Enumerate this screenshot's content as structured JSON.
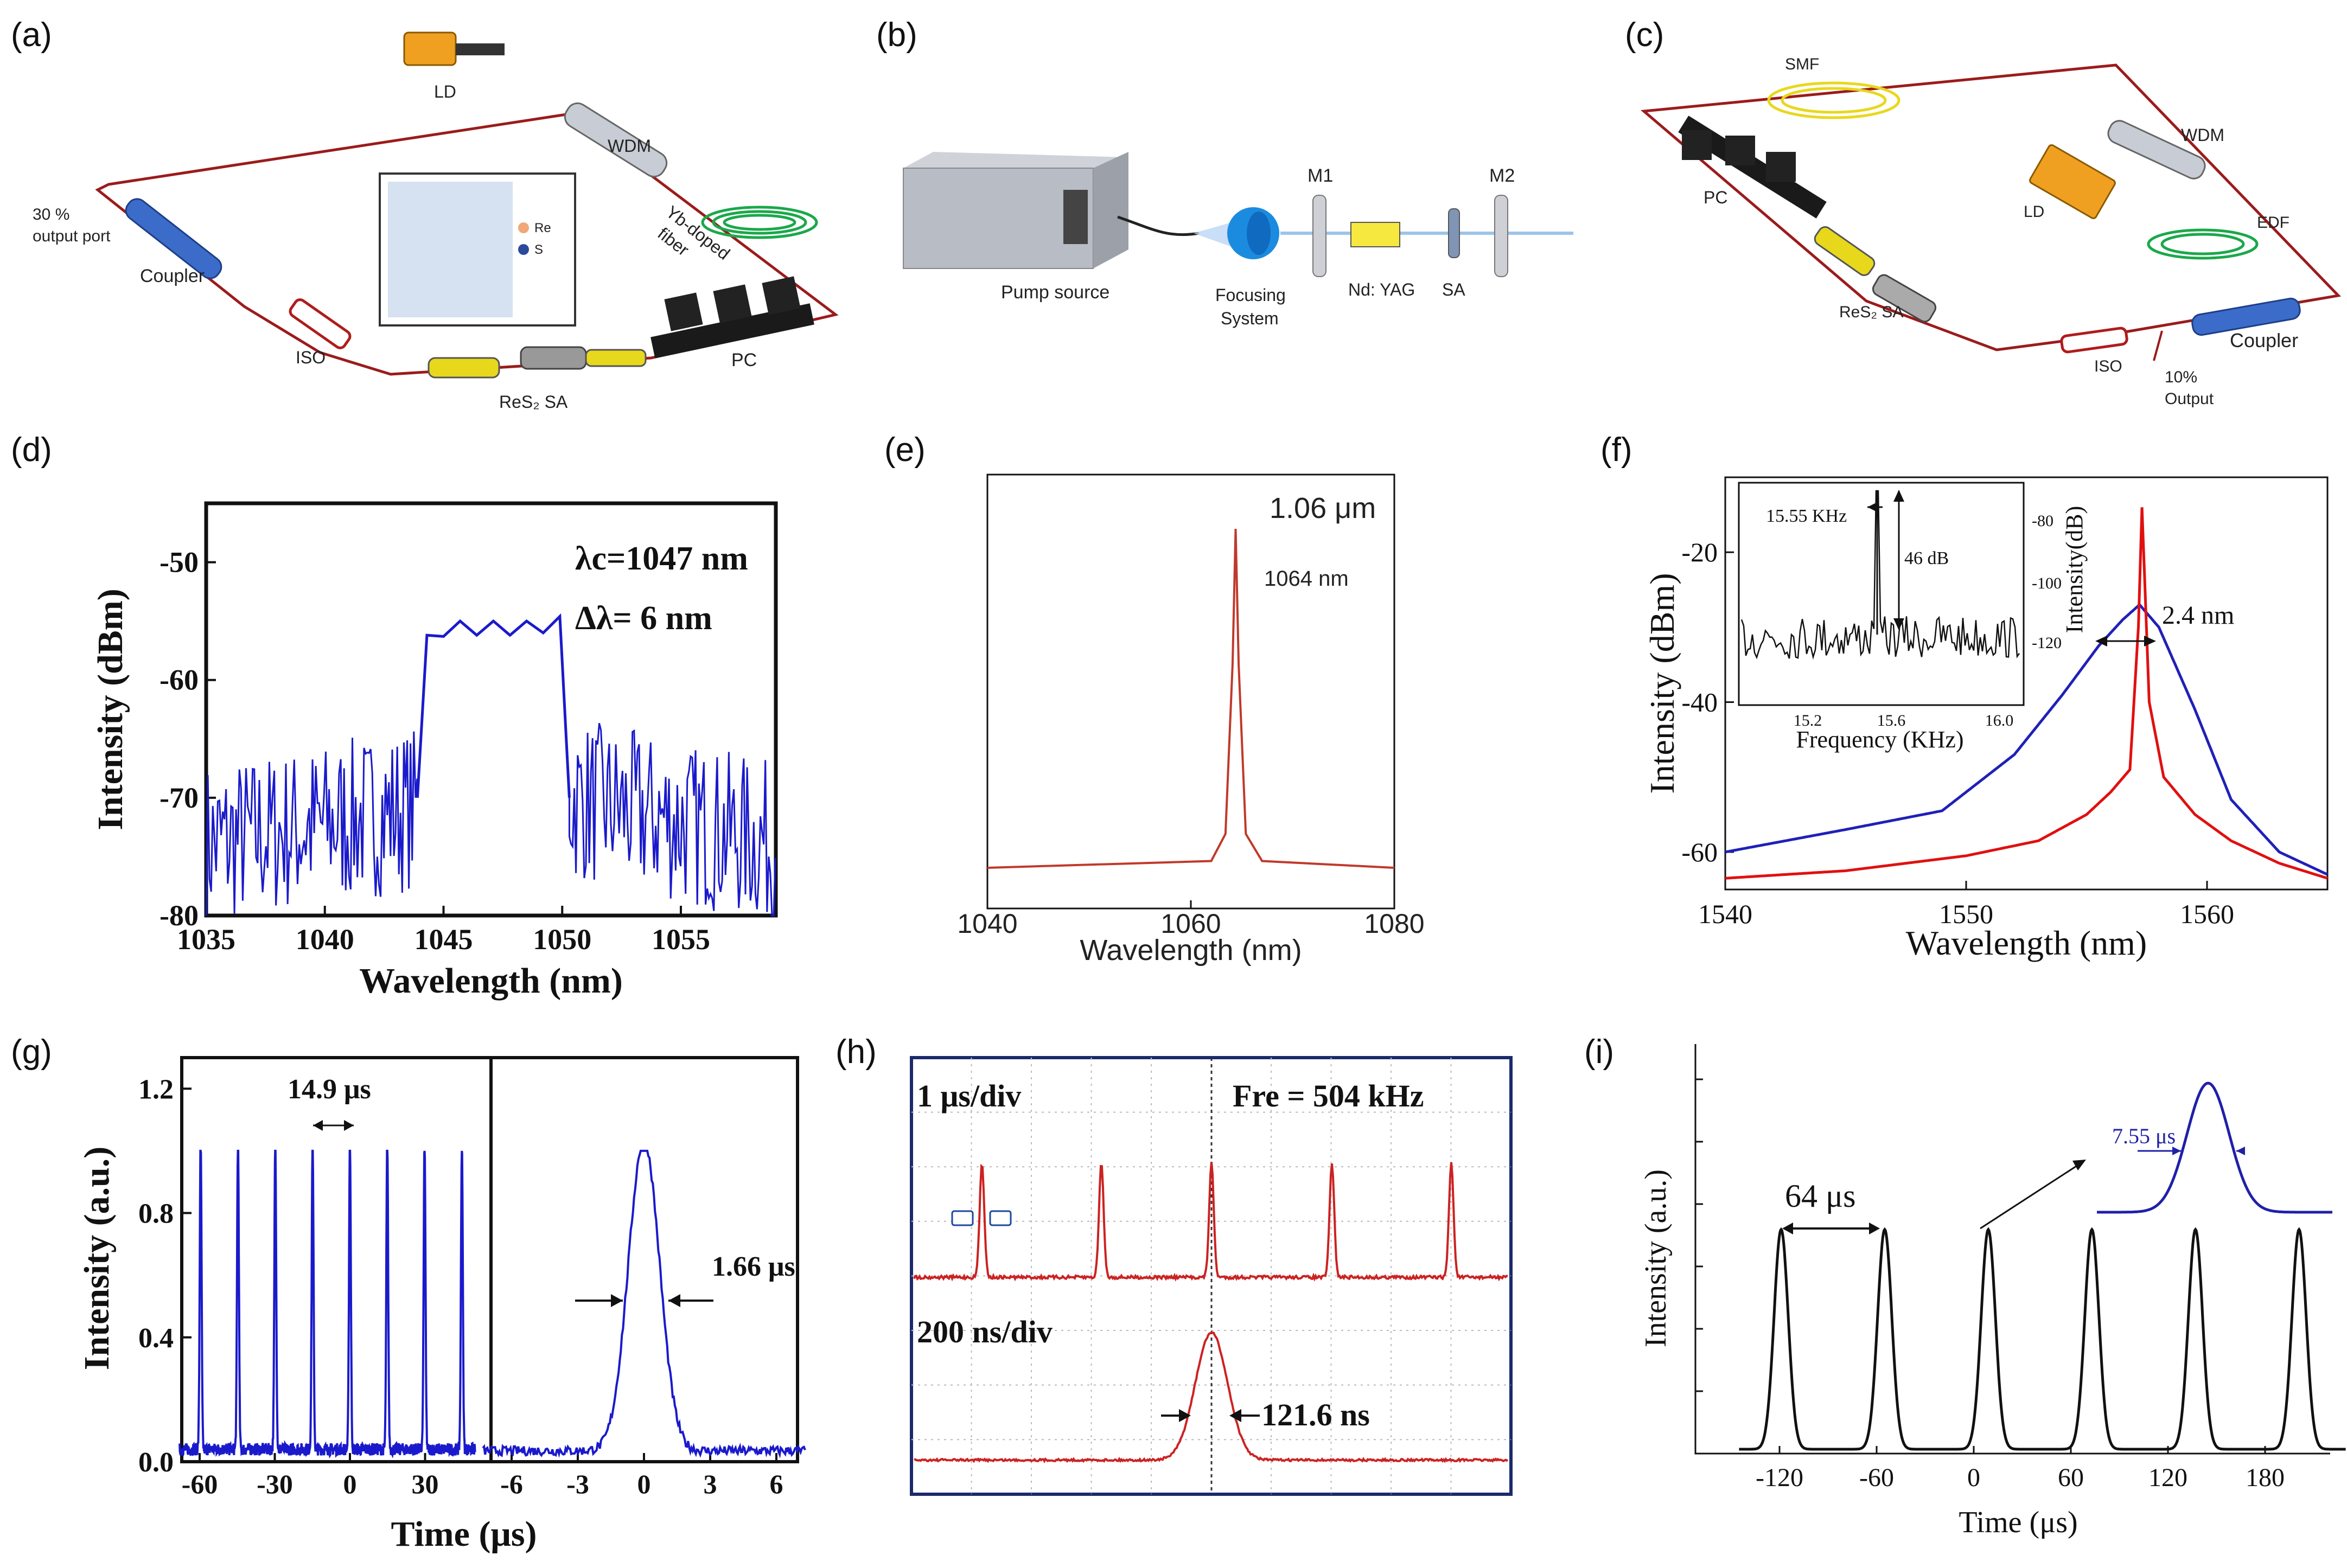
{
  "panels": [
    "(a)",
    "(b)",
    "(c)",
    "(d)",
    "(e)",
    "(f)",
    "(g)",
    "(h)",
    "(i)"
  ],
  "a": {
    "ld": "LD",
    "wdm": "WDM",
    "output": [
      "30 %",
      "output port"
    ],
    "coupler": "Coupler",
    "iso": "ISO",
    "sa": "ReS₂ SA",
    "pc": "PC",
    "fiber": [
      "Yb-doped",
      "fiber"
    ],
    "legend_re": "Re",
    "legend_s": "S"
  },
  "b": {
    "pump": "Pump source",
    "focusing": [
      "Focusing",
      "System"
    ],
    "m1": "M1",
    "m2": "M2",
    "ndyag": "Nd: YAG",
    "sa": "SA"
  },
  "c": {
    "smf": "SMF",
    "wdm": "WDM",
    "pc": "PC",
    "ld": "LD",
    "edf": "EDF",
    "sa": "ReS₂ SA",
    "iso": "ISO",
    "output": [
      "10%",
      "Output"
    ],
    "coupler": "Coupler"
  },
  "chart_data": [
    {
      "panel": "d",
      "type": "line",
      "xlabel": "Wavelength (nm)",
      "ylabel": "Intensity (dBm)",
      "xlim": [
        1035,
        1059
      ],
      "ylim": [
        -80,
        -45
      ],
      "xticks": [
        "1035",
        "1040",
        "1045",
        "1050",
        "1055"
      ],
      "yticks": [
        "-80",
        "-70",
        "-60",
        "-50"
      ],
      "annotations": [
        "λc=1047 nm",
        "Δλ= 6 nm"
      ],
      "series": [
        {
          "name": "spectrum",
          "color": "#1a1acc",
          "x": [
            1043.9,
            1044.3,
            1045,
            1045.7,
            1046.4,
            1047.1,
            1047.8,
            1048.5,
            1049.2,
            1049.9,
            1050.3
          ],
          "y": [
            -70,
            -56.2,
            -56.3,
            -55,
            -56.2,
            -55,
            -56.2,
            -55,
            -56,
            -54.6,
            -70
          ]
        }
      ]
    },
    {
      "panel": "e",
      "type": "line",
      "xlabel": "Wavelength (nm)",
      "ylabel": "",
      "xlim": [
        1040,
        1080
      ],
      "xticks": [
        "1040",
        "1060",
        "1080"
      ],
      "annotations": [
        "1.06 μm",
        "1064 nm"
      ],
      "series": [
        {
          "name": "spectrum",
          "color": "#c0392b",
          "x": [
            1040,
            1062,
            1063.4,
            1064.1,
            1064.4,
            1064.7,
            1065.4,
            1067,
            1080
          ],
          "y": [
            0,
            0.02,
            0.1,
            0.6,
            1.0,
            0.6,
            0.1,
            0.02,
            0
          ]
        }
      ]
    },
    {
      "panel": "f",
      "type": "line",
      "xlabel": "Wavelength (nm)",
      "ylabel": "Intensity (dBm)",
      "xlim": [
        1540,
        1565
      ],
      "ylim": [
        -65,
        -10
      ],
      "xticks": [
        "1540",
        "1550",
        "1560"
      ],
      "yticks": [
        "-60",
        "-40",
        "-20"
      ],
      "annotations": [
        "2.4 nm"
      ],
      "series": [
        {
          "name": "blue",
          "color": "#2020b8",
          "x": [
            1540,
            1545,
            1549,
            1552,
            1554,
            1555.5,
            1556.5,
            1557.2,
            1558,
            1559.5,
            1561,
            1563,
            1565
          ],
          "y": [
            -60,
            -57,
            -54.5,
            -47,
            -39,
            -32.5,
            -29,
            -27,
            -30,
            -41,
            -53,
            -60,
            -63
          ]
        },
        {
          "name": "red",
          "color": "#e01010",
          "x": [
            1540,
            1545,
            1550,
            1553,
            1555,
            1556,
            1556.8,
            1557.15,
            1557.3,
            1557.6,
            1558.2,
            1559.5,
            1561,
            1563,
            1565
          ],
          "y": [
            -63.5,
            -62.5,
            -60.5,
            -58.5,
            -55,
            -52,
            -49,
            -30,
            -14,
            -40,
            -50,
            -55,
            -58.5,
            -61.5,
            -63.5
          ]
        }
      ],
      "inset": {
        "xlabel": "Frequency (KHz)",
        "ylabel": "Intensity(dB)",
        "xticks": [
          "15.2",
          "15.6",
          "16.0"
        ],
        "yticks": [
          "-80",
          "-100",
          "-120"
        ],
        "annotations": [
          "15.55 KHz",
          "46 dB"
        ]
      }
    },
    {
      "panel": "g",
      "type": "line",
      "xlabel": "Time (μs)",
      "ylabel": "Intensity (a.u.)",
      "ylim": [
        0,
        1.3
      ],
      "yticks": [
        "0.0",
        "0.4",
        "0.8",
        "1.2"
      ],
      "left_xticks": [
        "-60",
        "-30",
        "0",
        "30"
      ],
      "right_xticks": [
        "-6",
        "-3",
        "0",
        "3",
        "6"
      ],
      "annotations": [
        "14.9 μs",
        "1.66 μs"
      ],
      "pulse_period_us": 14.9,
      "pulse_width_us": 1.66,
      "pulse_centers_us": [
        -59.6,
        -44.7,
        -29.8,
        -14.9,
        0,
        14.9,
        29.8,
        44.7
      ],
      "peak": 1.0
    },
    {
      "panel": "h",
      "type": "line",
      "annotations": [
        "1 μs/div",
        "Fre = 504 kHz",
        "200 ns/div",
        "121.6 ns"
      ],
      "repetition_kHz": 504,
      "pulse_width_ns": 121.6
    },
    {
      "panel": "i",
      "type": "line",
      "xlabel": "Time (μs)",
      "ylabel": "Intensity (a.u.)",
      "xticks": [
        "-120",
        "-60",
        "0",
        "60",
        "120",
        "180"
      ],
      "annotations": [
        "64 μs",
        "7.55 μs"
      ],
      "pulse_centers_us": [
        -119,
        -55,
        9,
        73,
        137,
        201
      ]
    }
  ]
}
